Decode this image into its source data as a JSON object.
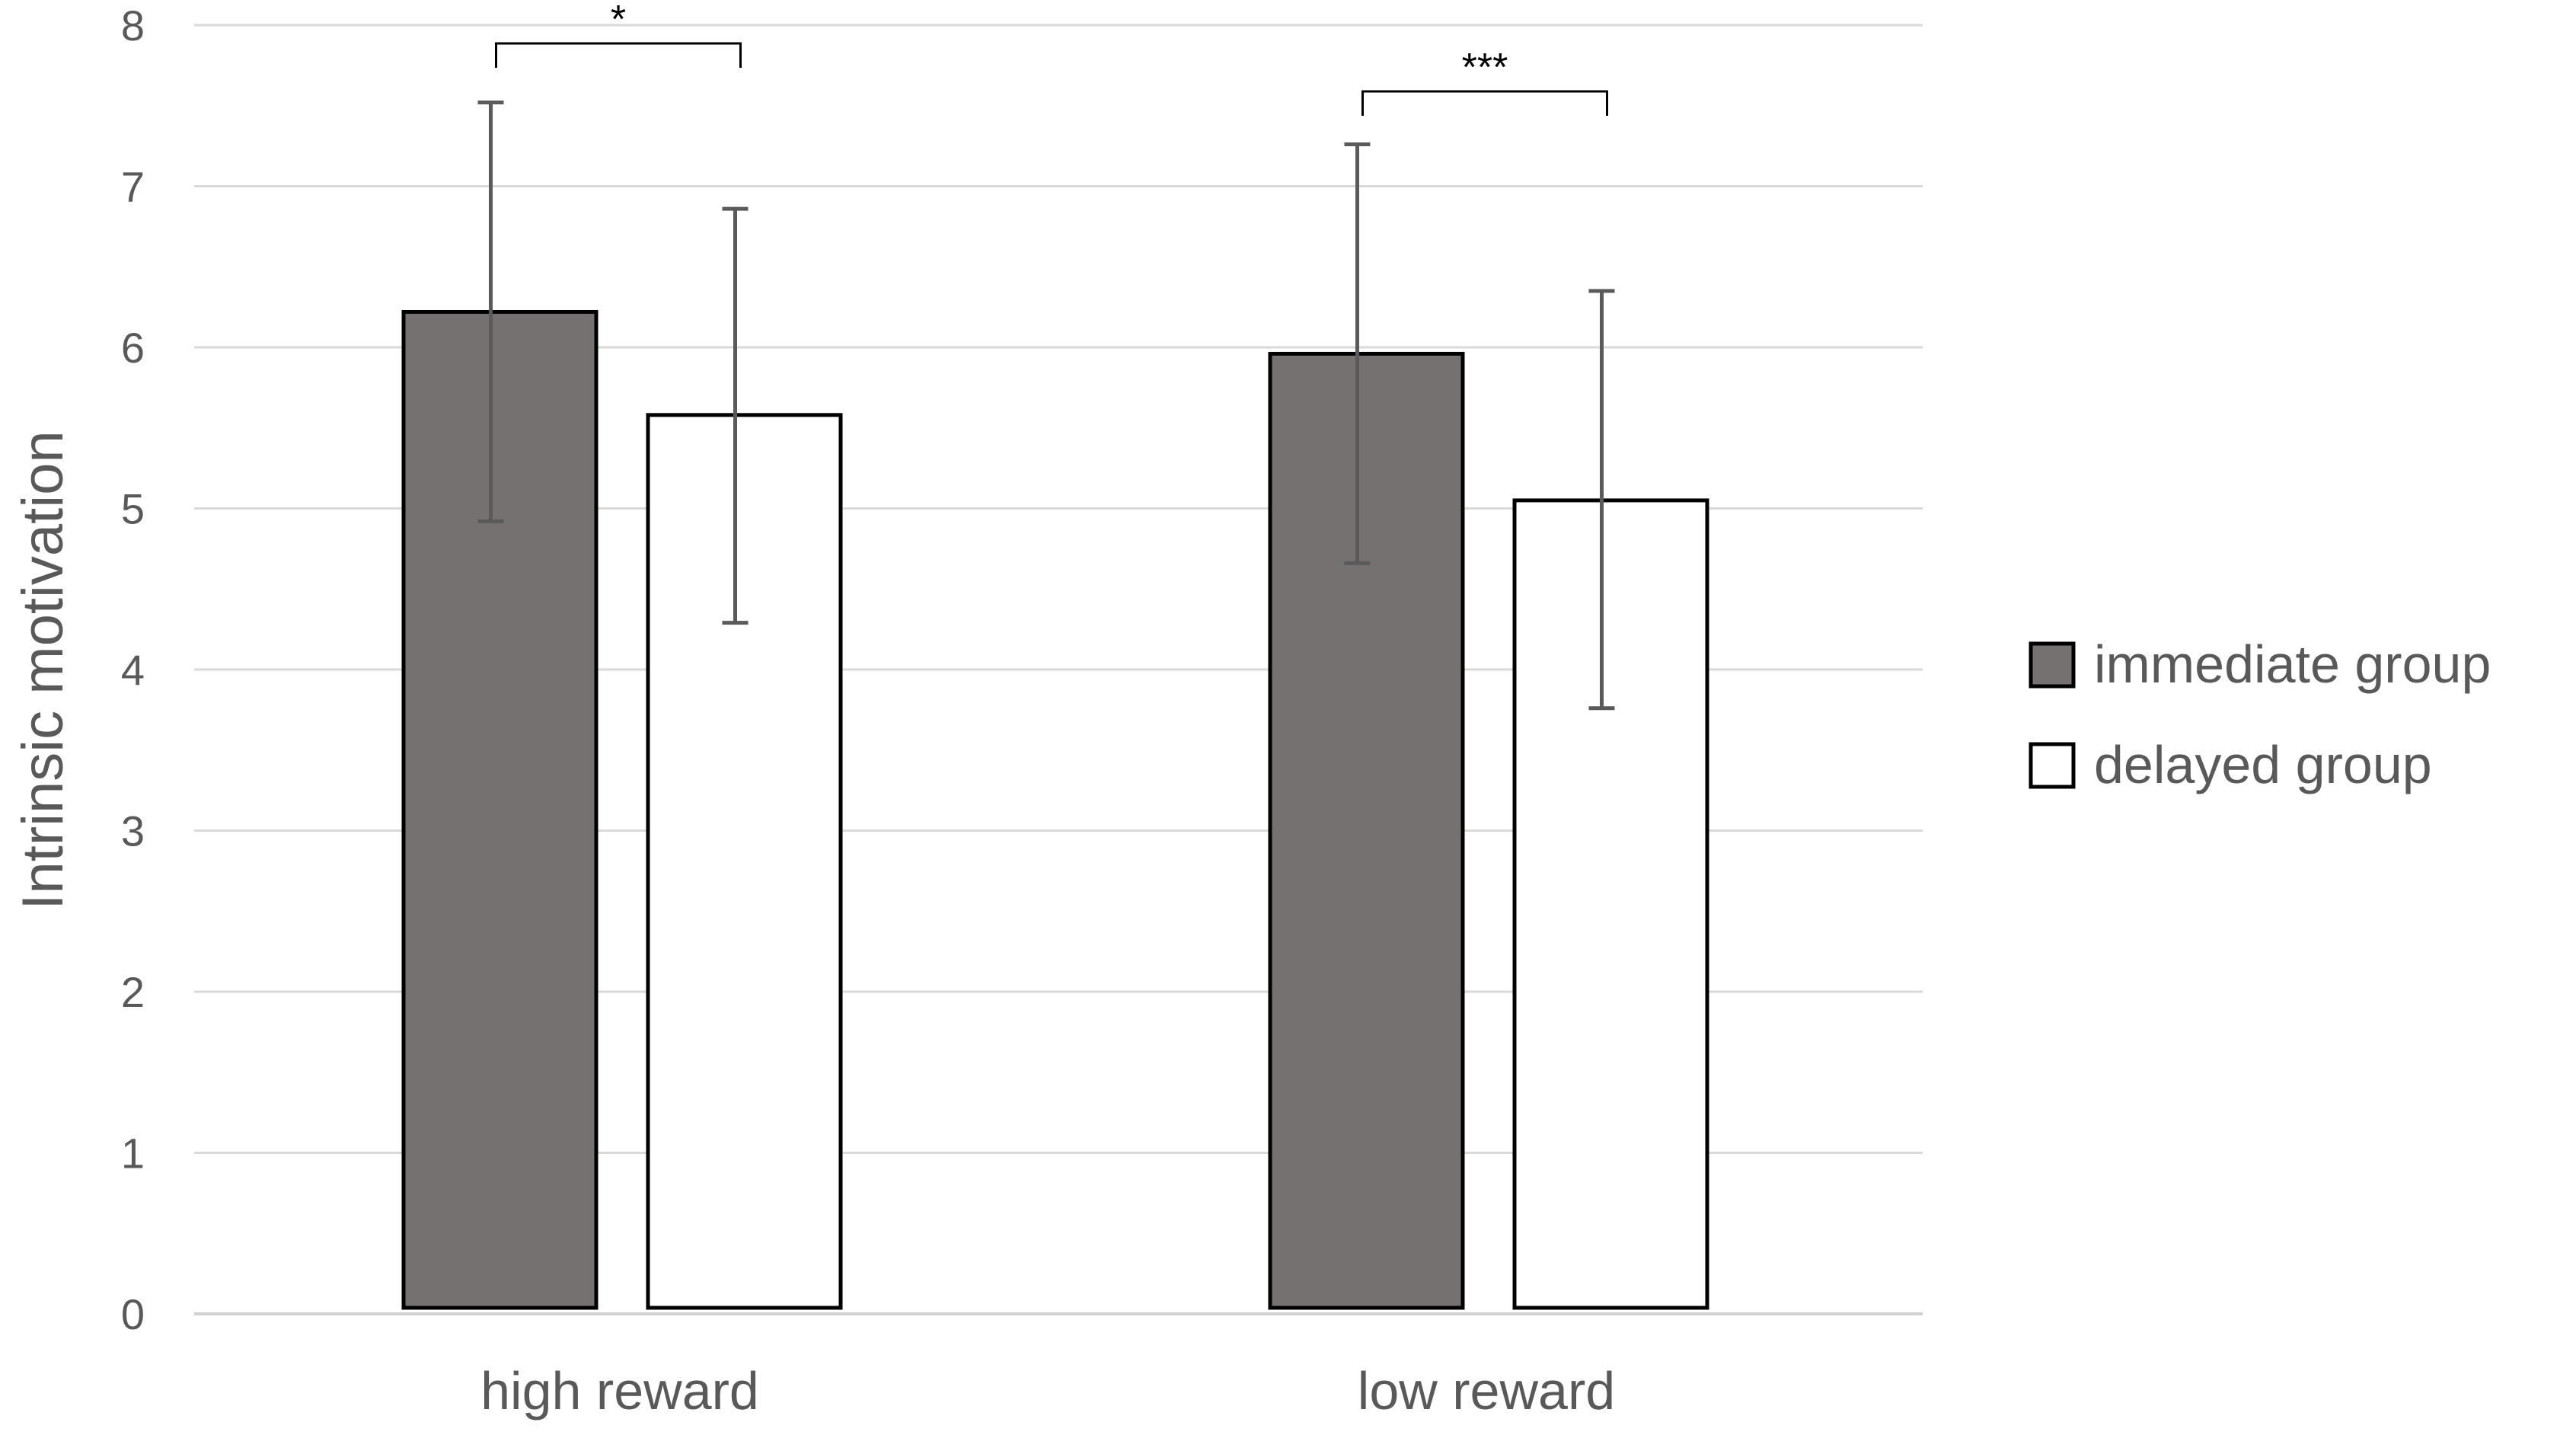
{
  "chart_data": {
    "type": "bar",
    "title": "",
    "xlabel": "",
    "ylabel": "Intrinsic motivation",
    "ylim": [
      0,
      8
    ],
    "yticks": [
      0,
      1,
      2,
      3,
      4,
      5,
      6,
      7,
      8
    ],
    "grid": true,
    "legend_position": "right",
    "categories": [
      "high reward",
      "low reward"
    ],
    "series": [
      {
        "name": "immediate group",
        "color": "#767171",
        "values": [
          6.22,
          5.96
        ],
        "error_low": [
          4.92,
          4.66
        ],
        "error_high": [
          7.52,
          7.26
        ]
      },
      {
        "name": "delayed group",
        "color": "#ffffff",
        "values": [
          5.58,
          5.05
        ],
        "error_low": [
          4.29,
          3.76
        ],
        "error_high": [
          6.86,
          6.35
        ]
      }
    ],
    "significance": [
      {
        "category": "high reward",
        "label": "*"
      },
      {
        "category": "low reward",
        "label": "***"
      }
    ]
  }
}
